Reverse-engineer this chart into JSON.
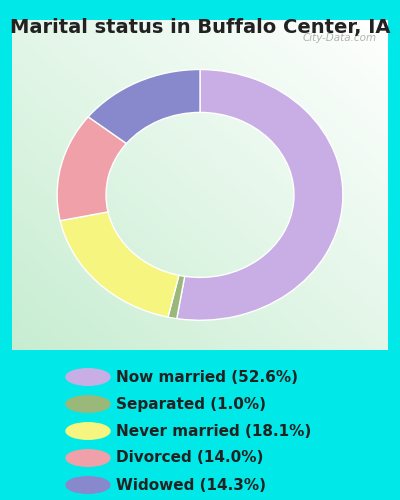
{
  "title": "Marital status in Buffalo Center, IA",
  "slices": [
    52.6,
    1.0,
    18.1,
    14.0,
    14.3
  ],
  "labels": [
    "Now married (52.6%)",
    "Separated (1.0%)",
    "Never married (18.1%)",
    "Divorced (14.0%)",
    "Widowed (14.3%)"
  ],
  "colors": [
    "#c9aee5",
    "#9ab87a",
    "#f5f580",
    "#f0a0a8",
    "#8888cc"
  ],
  "start_angle": 90,
  "outer_bg": "#00e8e8",
  "title_fontsize": 14,
  "title_color": "#222222",
  "legend_fontsize": 11,
  "watermark": "City-Data.com"
}
